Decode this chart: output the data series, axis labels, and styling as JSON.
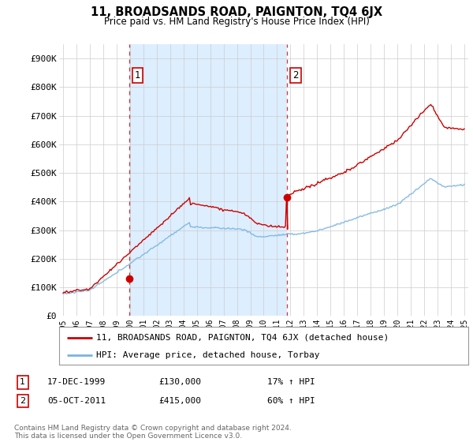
{
  "title": "11, BROADSANDS ROAD, PAIGNTON, TQ4 6JX",
  "subtitle": "Price paid vs. HM Land Registry's House Price Index (HPI)",
  "ylabel_ticks": [
    "£0",
    "£100K",
    "£200K",
    "£300K",
    "£400K",
    "£500K",
    "£600K",
    "£700K",
    "£800K",
    "£900K"
  ],
  "ytick_values": [
    0,
    100000,
    200000,
    300000,
    400000,
    500000,
    600000,
    700000,
    800000,
    900000
  ],
  "ylim": [
    0,
    950000
  ],
  "xlim_start": 1994.7,
  "xlim_end": 2025.3,
  "hpi_color": "#7ab4e0",
  "price_color": "#cc0000",
  "shade_color": "#ddeeff",
  "marker_color": "#cc0000",
  "sale1_x": 1999.96,
  "sale1_y": 130000,
  "sale1_label": "1",
  "sale1_date": "17-DEC-1999",
  "sale1_price": "£130,000",
  "sale1_hpi": "17% ↑ HPI",
  "sale2_x": 2011.76,
  "sale2_y": 415000,
  "sale2_label": "2",
  "sale2_date": "05-OCT-2011",
  "sale2_price": "£415,000",
  "sale2_hpi": "60% ↑ HPI",
  "legend_line1": "11, BROADSANDS ROAD, PAIGNTON, TQ4 6JX (detached house)",
  "legend_line2": "HPI: Average price, detached house, Torbay",
  "footnote": "Contains HM Land Registry data © Crown copyright and database right 2024.\nThis data is licensed under the Open Government Licence v3.0.",
  "background_color": "#ffffff",
  "grid_color": "#cccccc"
}
